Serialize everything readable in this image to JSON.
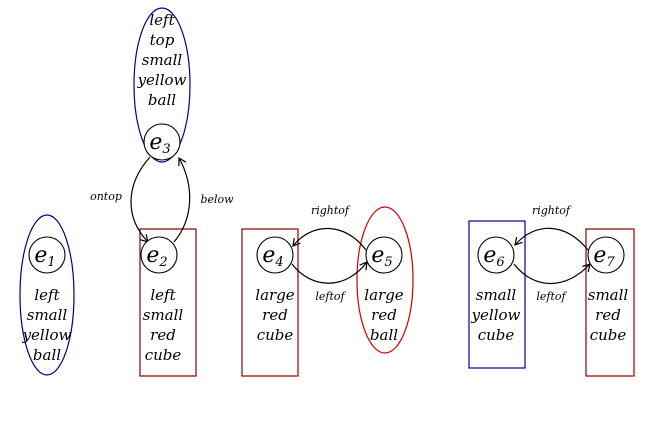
{
  "entities": [
    {
      "base": "e",
      "index": "1",
      "attributes": [
        "left",
        "small",
        "yellow",
        "ball"
      ],
      "shape": "ellipse",
      "color": "#00008b"
    },
    {
      "base": "e",
      "index": "2",
      "attributes": [
        "left",
        "small",
        "red",
        "cube"
      ],
      "shape": "rect",
      "color": "#8b0000"
    },
    {
      "base": "e",
      "index": "3",
      "attributes": [
        "left",
        "top",
        "small",
        "yellow",
        "ball"
      ],
      "shape": "ellipse",
      "color": "#00008b"
    },
    {
      "base": "e",
      "index": "4",
      "attributes": [
        "large",
        "red",
        "cube"
      ],
      "shape": "rect",
      "color": "#8b0000"
    },
    {
      "base": "e",
      "index": "5",
      "attributes": [
        "large",
        "red",
        "ball"
      ],
      "shape": "ellipse",
      "color": "#cc0000"
    },
    {
      "base": "e",
      "index": "6",
      "attributes": [
        "small",
        "yellow",
        "cube"
      ],
      "shape": "rect",
      "color": "#00008b"
    },
    {
      "base": "e",
      "index": "7",
      "attributes": [
        "small",
        "red",
        "cube"
      ],
      "shape": "rect",
      "color": "#8b0000"
    }
  ],
  "relations": [
    {
      "from": "3",
      "to": "2",
      "label": "ontop"
    },
    {
      "from": "2",
      "to": "3",
      "label": "below"
    },
    {
      "from": "5",
      "to": "4",
      "label": "rightof"
    },
    {
      "from": "4",
      "to": "5",
      "label": "leftof"
    },
    {
      "from": "7",
      "to": "6",
      "label": "rightof"
    },
    {
      "from": "6",
      "to": "7",
      "label": "leftof"
    }
  ]
}
